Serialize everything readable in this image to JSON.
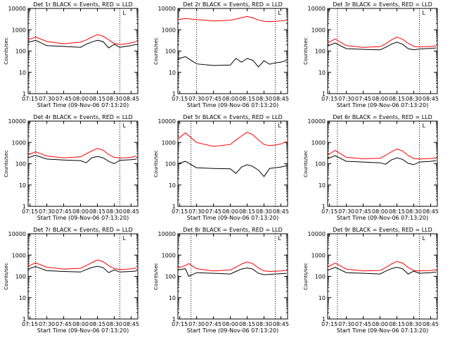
{
  "colors": {
    "events": "#000000",
    "lld": "#ff0000",
    "axes": "#000000",
    "background": "#ffffff"
  },
  "chart_data": [
    {
      "type": "line",
      "title": "Det 1r BLACK = Events, RED = LLD",
      "xlabel": "Start Time (09-Nov-06 07:13:20)",
      "ylabel": "Counts/sec",
      "yscale": "log",
      "ylim": [
        1,
        10000
      ],
      "x_ticks": [
        "07:15",
        "07:30",
        "07:45",
        "08:00",
        "08:15",
        "08:30",
        "08:45"
      ],
      "y_ticks": [
        "1",
        "10",
        "100",
        "1000",
        "10000"
      ],
      "vlines_x": [
        "07:20",
        "08:35"
      ],
      "marker": "L",
      "x": [
        "07:13",
        "07:20",
        "07:30",
        "07:45",
        "08:00",
        "08:05",
        "08:10",
        "08:15",
        "08:20",
        "08:25",
        "08:30",
        "08:35",
        "08:40",
        "08:45",
        "08:50"
      ],
      "series": [
        {
          "name": "LLD",
          "color": "red",
          "values": [
            330,
            460,
            280,
            220,
            260,
            330,
            450,
            590,
            500,
            340,
            230,
            205,
            215,
            240,
            285
          ]
        },
        {
          "name": "Events",
          "color": "black",
          "values": [
            250,
            320,
            180,
            165,
            150,
            210,
            265,
            320,
            280,
            140,
            210,
            150,
            165,
            180,
            210
          ]
        }
      ]
    },
    {
      "type": "line",
      "title": "Det 2r BLACK = Events, RED = LLD",
      "xlabel": "Start Time (09-Nov-06 07:13:20)",
      "ylabel": "Counts/sec",
      "yscale": "log",
      "ylim": [
        1,
        10000
      ],
      "x_ticks": [
        "07:15",
        "07:30",
        "07:45",
        "08:00",
        "08:15",
        "08:30",
        "08:45"
      ],
      "y_ticks": [
        "1",
        "10",
        "100",
        "1000",
        "10000"
      ],
      "vlines_x": [
        "07:30",
        "08:40"
      ],
      "marker": "L",
      "x": [
        "07:13",
        "07:20",
        "07:30",
        "07:45",
        "08:00",
        "08:05",
        "08:10",
        "08:15",
        "08:20",
        "08:25",
        "08:30",
        "08:35",
        "08:40",
        "08:45",
        "08:50"
      ],
      "series": [
        {
          "name": "LLD",
          "color": "red",
          "values": [
            3000,
            3400,
            3000,
            2600,
            2800,
            3200,
            3700,
            4200,
            3600,
            2900,
            2500,
            2400,
            2500,
            2600,
            2800
          ]
        },
        {
          "name": "Events",
          "color": "black",
          "values": [
            42,
            55,
            25,
            21,
            22,
            45,
            30,
            45,
            37,
            18,
            35,
            24,
            28,
            30,
            36
          ]
        }
      ]
    },
    {
      "type": "line",
      "title": "Det 3r BLACK = Events, RED = LLD",
      "xlabel": "Start Time (09-Nov-06 07:13:20)",
      "ylabel": "Counts/sec",
      "yscale": "log",
      "ylim": [
        1,
        10000
      ],
      "x_ticks": [
        "07:15",
        "07:30",
        "07:45",
        "08:00",
        "08:15",
        "08:30",
        "08:45"
      ],
      "y_ticks": [
        "1",
        "10",
        "100",
        "1000",
        "10000"
      ],
      "vlines_x": [
        "07:22",
        "08:35"
      ],
      "marker": "L",
      "x": [
        "07:13",
        "07:20",
        "07:30",
        "07:45",
        "08:00",
        "08:05",
        "08:10",
        "08:15",
        "08:20",
        "08:25",
        "08:30",
        "08:35",
        "08:40",
        "08:45",
        "08:50"
      ],
      "series": [
        {
          "name": "LLD",
          "color": "red",
          "values": [
            230,
            370,
            180,
            150,
            160,
            220,
            330,
            450,
            360,
            230,
            165,
            155,
            160,
            165,
            175
          ]
        },
        {
          "name": "Events",
          "color": "black",
          "values": [
            170,
            240,
            130,
            120,
            115,
            150,
            210,
            260,
            210,
            130,
            115,
            125,
            130,
            135,
            140
          ]
        }
      ]
    },
    {
      "type": "line",
      "title": "Det 4r BLACK = Events, RED = LLD",
      "xlabel": "Start Time (09-Nov-06 07:13:20)",
      "ylabel": "Counts/sec",
      "yscale": "log",
      "ylim": [
        1,
        10000
      ],
      "x_ticks": [
        "07:15",
        "07:30",
        "07:45",
        "08:00",
        "08:15",
        "08:30",
        "08:45"
      ],
      "y_ticks": [
        "1",
        "10",
        "100",
        "1000",
        "10000"
      ],
      "vlines_x": [
        "07:20",
        "08:35"
      ],
      "marker": "L",
      "x": [
        "07:13",
        "07:20",
        "07:30",
        "07:45",
        "08:00",
        "08:05",
        "08:10",
        "08:15",
        "08:20",
        "08:25",
        "08:30",
        "08:35",
        "08:40",
        "08:45",
        "08:50"
      ],
      "series": [
        {
          "name": "LLD",
          "color": "red",
          "values": [
            260,
            360,
            230,
            190,
            210,
            290,
            400,
            520,
            430,
            270,
            200,
            185,
            190,
            200,
            230
          ]
        },
        {
          "name": "Events",
          "color": "black",
          "values": [
            190,
            250,
            165,
            150,
            140,
            110,
            190,
            220,
            190,
            130,
            100,
            145,
            150,
            155,
            165
          ]
        }
      ]
    },
    {
      "type": "line",
      "title": "Det 5r BLACK = Events, RED = LLD",
      "xlabel": "Start Time (09-Nov-06 07:13:20)",
      "ylabel": "Counts/sec",
      "yscale": "log",
      "ylim": [
        1,
        10000
      ],
      "x_ticks": [
        "07:15",
        "07:30",
        "07:45",
        "08:00",
        "08:15",
        "08:30",
        "08:45"
      ],
      "y_ticks": [
        "1",
        "10",
        "100",
        "1000",
        "10000"
      ],
      "vlines_x": [
        "07:25",
        "08:40"
      ],
      "marker": "L",
      "x": [
        "07:13",
        "07:20",
        "07:30",
        "07:45",
        "08:00",
        "08:05",
        "08:10",
        "08:15",
        "08:20",
        "08:25",
        "08:30",
        "08:35",
        "08:40",
        "08:45",
        "08:50"
      ],
      "series": [
        {
          "name": "LLD",
          "color": "red",
          "values": [
            1400,
            2800,
            1000,
            650,
            800,
            1300,
            2000,
            3000,
            2300,
            1300,
            800,
            700,
            750,
            850,
            1100
          ]
        },
        {
          "name": "Events",
          "color": "black",
          "values": [
            100,
            130,
            65,
            60,
            58,
            35,
            70,
            90,
            75,
            50,
            25,
            60,
            65,
            70,
            80
          ]
        }
      ]
    },
    {
      "type": "line",
      "title": "Det 6r BLACK = Events, RED = LLD",
      "xlabel": "Start Time (09-Nov-06 07:13:20)",
      "ylabel": "Counts/sec",
      "yscale": "log",
      "ylim": [
        1,
        10000
      ],
      "x_ticks": [
        "07:15",
        "07:30",
        "07:45",
        "08:00",
        "08:15",
        "08:30",
        "08:45"
      ],
      "y_ticks": [
        "1",
        "10",
        "100",
        "1000",
        "10000"
      ],
      "vlines_x": [
        "07:22",
        "08:35"
      ],
      "marker": "L",
      "x": [
        "07:13",
        "07:20",
        "07:30",
        "07:45",
        "08:00",
        "08:05",
        "08:10",
        "08:15",
        "08:20",
        "08:25",
        "08:30",
        "08:35",
        "08:40",
        "08:45",
        "08:50"
      ],
      "series": [
        {
          "name": "LLD",
          "color": "red",
          "values": [
            250,
            420,
            200,
            170,
            180,
            250,
            360,
            490,
            400,
            240,
            175,
            165,
            170,
            175,
            185
          ]
        },
        {
          "name": "Events",
          "color": "black",
          "values": [
            170,
            240,
            130,
            120,
            110,
            95,
            150,
            190,
            160,
            105,
            90,
            120,
            125,
            130,
            140
          ]
        }
      ]
    },
    {
      "type": "line",
      "title": "Det 7r BLACK = Events, RED = LLD",
      "xlabel": "Start Time (09-Nov-06 07:13:20)",
      "ylabel": "Counts/sec",
      "yscale": "log",
      "ylim": [
        1,
        10000
      ],
      "x_ticks": [
        "07:15",
        "07:30",
        "07:45",
        "08:00",
        "08:15",
        "08:30",
        "08:45"
      ],
      "y_ticks": [
        "1",
        "10",
        "100",
        "1000",
        "10000"
      ],
      "vlines_x": [
        "07:20",
        "08:35"
      ],
      "marker": "L",
      "x": [
        "07:13",
        "07:20",
        "07:30",
        "07:45",
        "08:00",
        "08:05",
        "08:10",
        "08:15",
        "08:20",
        "08:25",
        "08:30",
        "08:35",
        "08:40",
        "08:45",
        "08:50"
      ],
      "series": [
        {
          "name": "LLD",
          "color": "red",
          "values": [
            300,
            430,
            270,
            220,
            240,
            320,
            440,
            590,
            490,
            320,
            230,
            210,
            215,
            225,
            250
          ]
        },
        {
          "name": "Events",
          "color": "black",
          "values": [
            220,
            290,
            185,
            170,
            160,
            210,
            260,
            300,
            260,
            150,
            200,
            160,
            165,
            170,
            180
          ]
        }
      ]
    },
    {
      "type": "line",
      "title": "Det 8r BLACK = Events, RED = LLD",
      "xlabel": "Start Time (09-Nov-06 07:13:20)",
      "ylabel": "Counts/sec",
      "yscale": "log",
      "ylim": [
        1,
        10000
      ],
      "x_ticks": [
        "07:15",
        "07:30",
        "07:45",
        "08:00",
        "08:15",
        "08:30",
        "08:45"
      ],
      "y_ticks": [
        "1",
        "10",
        "100",
        "1000",
        "10000"
      ],
      "vlines_x": [
        "07:25",
        "08:40"
      ],
      "marker": "L",
      "x": [
        "07:13",
        "07:20",
        "07:23",
        "07:30",
        "07:45",
        "08:00",
        "08:05",
        "08:10",
        "08:15",
        "08:20",
        "08:25",
        "08:30",
        "08:35",
        "08:40",
        "08:45",
        "08:50"
      ],
      "series": [
        {
          "name": "LLD",
          "color": "red",
          "values": [
            250,
            320,
            400,
            230,
            180,
            200,
            270,
            380,
            480,
            390,
            250,
            180,
            170,
            175,
            180,
            190
          ]
        },
        {
          "name": "Events",
          "color": "black",
          "values": [
            200,
            230,
            100,
            150,
            140,
            130,
            170,
            220,
            250,
            220,
            140,
            120,
            125,
            130,
            135,
            140
          ]
        }
      ]
    },
    {
      "type": "line",
      "title": "Det 9r BLACK = Events, RED = LLD",
      "xlabel": "Start Time (09-Nov-06 07:13:20)",
      "ylabel": "Counts/sec",
      "yscale": "log",
      "ylim": [
        1,
        10000
      ],
      "x_ticks": [
        "07:15",
        "07:30",
        "07:45",
        "08:00",
        "08:15",
        "08:30",
        "08:45"
      ],
      "y_ticks": [
        "1",
        "10",
        "100",
        "1000",
        "10000"
      ],
      "vlines_x": [
        "07:22",
        "08:35"
      ],
      "marker": "L",
      "x": [
        "07:13",
        "07:20",
        "07:30",
        "07:45",
        "08:00",
        "08:05",
        "08:10",
        "08:15",
        "08:20",
        "08:25",
        "08:30",
        "08:35",
        "08:40",
        "08:45",
        "08:50"
      ],
      "series": [
        {
          "name": "LLD",
          "color": "red",
          "values": [
            270,
            420,
            220,
            180,
            190,
            260,
            380,
            510,
            420,
            260,
            190,
            180,
            185,
            190,
            205
          ]
        },
        {
          "name": "Events",
          "color": "black",
          "values": [
            190,
            270,
            150,
            140,
            130,
            175,
            230,
            270,
            230,
            130,
            175,
            140,
            145,
            150,
            160
          ]
        }
      ]
    }
  ]
}
